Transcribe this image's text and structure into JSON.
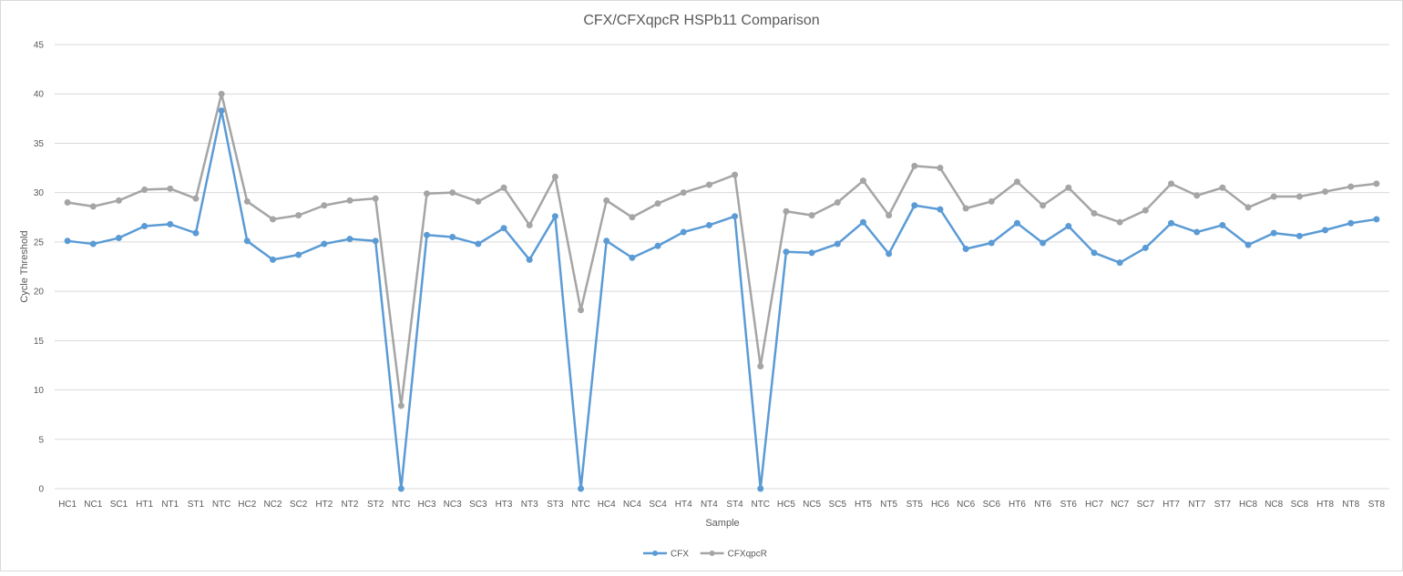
{
  "chart_data": {
    "type": "line",
    "title": "CFX/CFXqpcR HSPb11 Comparison",
    "xlabel": "Sample",
    "ylabel": "Cycle Threshold",
    "ylim": [
      0,
      45
    ],
    "yticks": [
      0,
      5,
      10,
      15,
      20,
      25,
      30,
      35,
      40,
      45
    ],
    "grid": true,
    "legend_position": "bottom",
    "categories": [
      "HC1",
      "NC1",
      "SC1",
      "HT1",
      "NT1",
      "ST1",
      "NTC",
      "HC2",
      "NC2",
      "SC2",
      "HT2",
      "NT2",
      "ST2",
      "NTC",
      "HC3",
      "NC3",
      "SC3",
      "HT3",
      "NT3",
      "ST3",
      "NTC",
      "HC4",
      "NC4",
      "SC4",
      "HT4",
      "NT4",
      "ST4",
      "NTC",
      "HC5",
      "NC5",
      "SC5",
      "HT5",
      "NT5",
      "ST5",
      "HC6",
      "NC6",
      "SC6",
      "HT6",
      "NT6",
      "ST6",
      "HC7",
      "NC7",
      "SC7",
      "HT7",
      "NT7",
      "ST7",
      "HC8",
      "NC8",
      "SC8",
      "HT8",
      "NT8",
      "ST8"
    ],
    "series": [
      {
        "name": "CFX",
        "color": "#5b9bd5",
        "values": [
          25.1,
          24.8,
          25.4,
          26.6,
          26.8,
          25.9,
          38.3,
          25.1,
          23.2,
          23.7,
          24.8,
          25.3,
          25.1,
          0,
          25.7,
          25.5,
          24.8,
          26.4,
          23.2,
          27.6,
          0,
          25.1,
          23.4,
          24.6,
          26.0,
          26.7,
          27.6,
          0,
          24.0,
          23.9,
          24.8,
          27.0,
          23.8,
          28.7,
          28.3,
          24.3,
          24.9,
          26.9,
          24.9,
          26.6,
          23.9,
          22.9,
          24.4,
          26.9,
          26.0,
          26.7,
          24.7,
          25.9,
          25.6,
          26.2,
          26.9,
          27.3
        ]
      },
      {
        "name": "CFXqpcR",
        "color": "#a5a5a5",
        "values": [
          29.0,
          28.6,
          29.2,
          30.3,
          30.4,
          29.4,
          40.0,
          29.1,
          27.3,
          27.7,
          28.7,
          29.2,
          29.4,
          8.4,
          29.9,
          30.0,
          29.1,
          30.5,
          26.7,
          31.6,
          18.1,
          29.2,
          27.5,
          28.9,
          30.0,
          30.8,
          31.8,
          12.4,
          28.1,
          27.7,
          29.0,
          31.2,
          27.7,
          32.7,
          32.5,
          28.4,
          29.1,
          31.1,
          28.7,
          30.5,
          27.9,
          27.0,
          28.2,
          30.9,
          29.7,
          30.5,
          28.5,
          29.6,
          29.6,
          30.1,
          30.6,
          30.9
        ]
      }
    ]
  }
}
